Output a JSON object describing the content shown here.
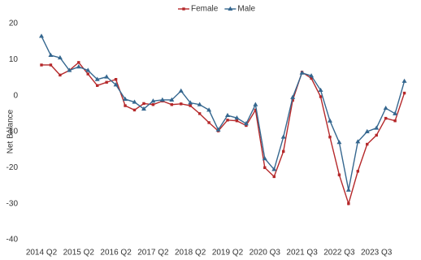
{
  "chart_data": {
    "type": "line",
    "y_label": "Net Balance",
    "categories": [
      "2014 Q2",
      null,
      null,
      null,
      "2015 Q2",
      null,
      null,
      null,
      "2016 Q2",
      null,
      null,
      null,
      "2017 Q2",
      null,
      null,
      null,
      "2018 Q2",
      null,
      null,
      null,
      "2019 Q2",
      null,
      null,
      null,
      "2020 Q3",
      null,
      null,
      null,
      "2021 Q3",
      null,
      null,
      null,
      "2022 Q3",
      null,
      null,
      null,
      "2023 Q3",
      null,
      null,
      null
    ],
    "series": [
      {
        "name": "Female",
        "color": "#b5282a",
        "marker": "square",
        "values": [
          8.5,
          8.5,
          5.7,
          7,
          9.2,
          6,
          2.8,
          3.7,
          4.5,
          -2.8,
          -4,
          -2.2,
          -2.5,
          -1.5,
          -2.5,
          -2.3,
          -2.8,
          -5,
          -7.5,
          -9.8,
          -6.8,
          -7,
          -8.3,
          -4,
          -20,
          -22.5,
          -15.5,
          -1.3,
          6.5,
          4.8,
          -0.3,
          -11.5,
          -22,
          -30,
          -21,
          -13.5,
          -11,
          -6.3,
          -7,
          0.7
        ]
      },
      {
        "name": "Male",
        "color": "#35678f",
        "marker": "triangle",
        "values": [
          16.5,
          11.2,
          10.5,
          7,
          8,
          7,
          4.5,
          5.2,
          3,
          -1,
          -1.8,
          -3.7,
          -1.5,
          -1.2,
          -1.2,
          1.3,
          -2,
          -2.5,
          -4,
          -9.5,
          -5.5,
          -6.2,
          -7.8,
          -2.5,
          -17.5,
          -20.5,
          -11.5,
          -0.5,
          6.3,
          5.5,
          1.5,
          -7,
          -13,
          -26.2,
          -12.8,
          -10,
          -9,
          -3.5,
          -5,
          4
        ]
      }
    ],
    "ylim": [
      -40,
      20
    ],
    "yticks": [
      -40,
      -30,
      -20,
      -10,
      0,
      10,
      20
    ],
    "legend": "top"
  }
}
